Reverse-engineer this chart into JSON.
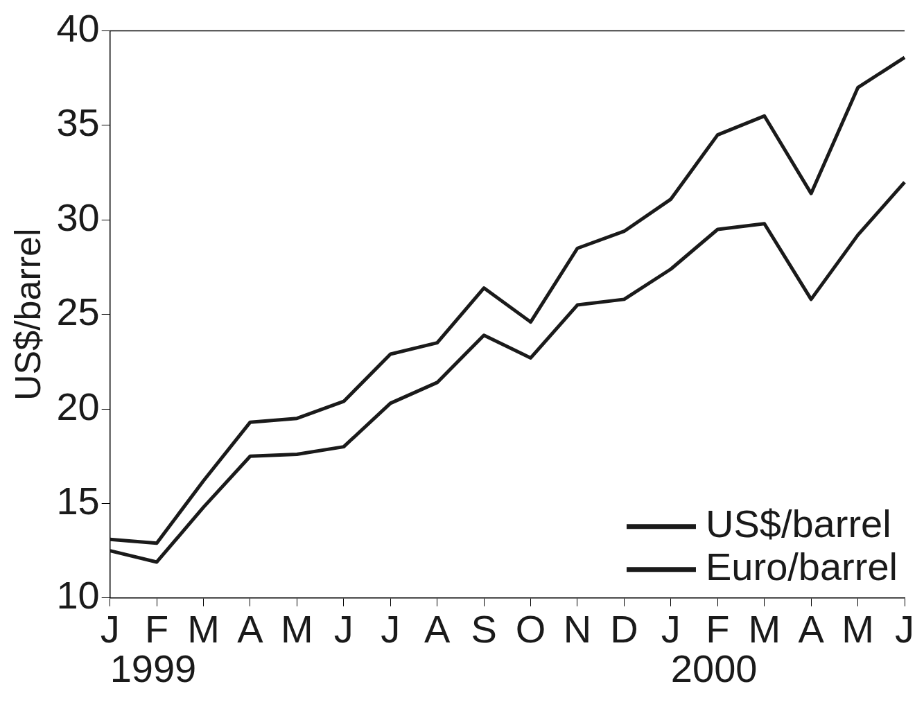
{
  "chart_data": {
    "type": "line",
    "ylabel": "US$/barrel",
    "categories": [
      "J",
      "F",
      "M",
      "A",
      "M",
      "J",
      "J",
      "A",
      "S",
      "O",
      "N",
      "D",
      "J",
      "F",
      "M",
      "A",
      "M",
      "J"
    ],
    "series": [
      {
        "name": "US$/barrel",
        "color": "#1a1a1a",
        "values": [
          12.5,
          11.9,
          14.8,
          17.5,
          17.6,
          18.0,
          20.3,
          21.4,
          23.9,
          22.7,
          25.5,
          25.8,
          27.4,
          29.5,
          29.8,
          25.8,
          29.2,
          32.0
        ]
      },
      {
        "name": "Euro/barrel",
        "color": "#1a1a1a",
        "values": [
          13.1,
          12.9,
          16.2,
          19.3,
          19.5,
          20.4,
          22.9,
          23.5,
          26.4,
          24.6,
          28.5,
          29.4,
          31.1,
          34.5,
          35.5,
          31.4,
          37.0,
          38.6
        ]
      }
    ],
    "ylim": [
      10,
      40
    ],
    "yticks": [
      10,
      15,
      20,
      25,
      30,
      35,
      40
    ],
    "grid": false,
    "legend": "bottom right",
    "marker": "none",
    "line_style": "solid",
    "annotations": [
      "1999",
      "2000"
    ]
  }
}
